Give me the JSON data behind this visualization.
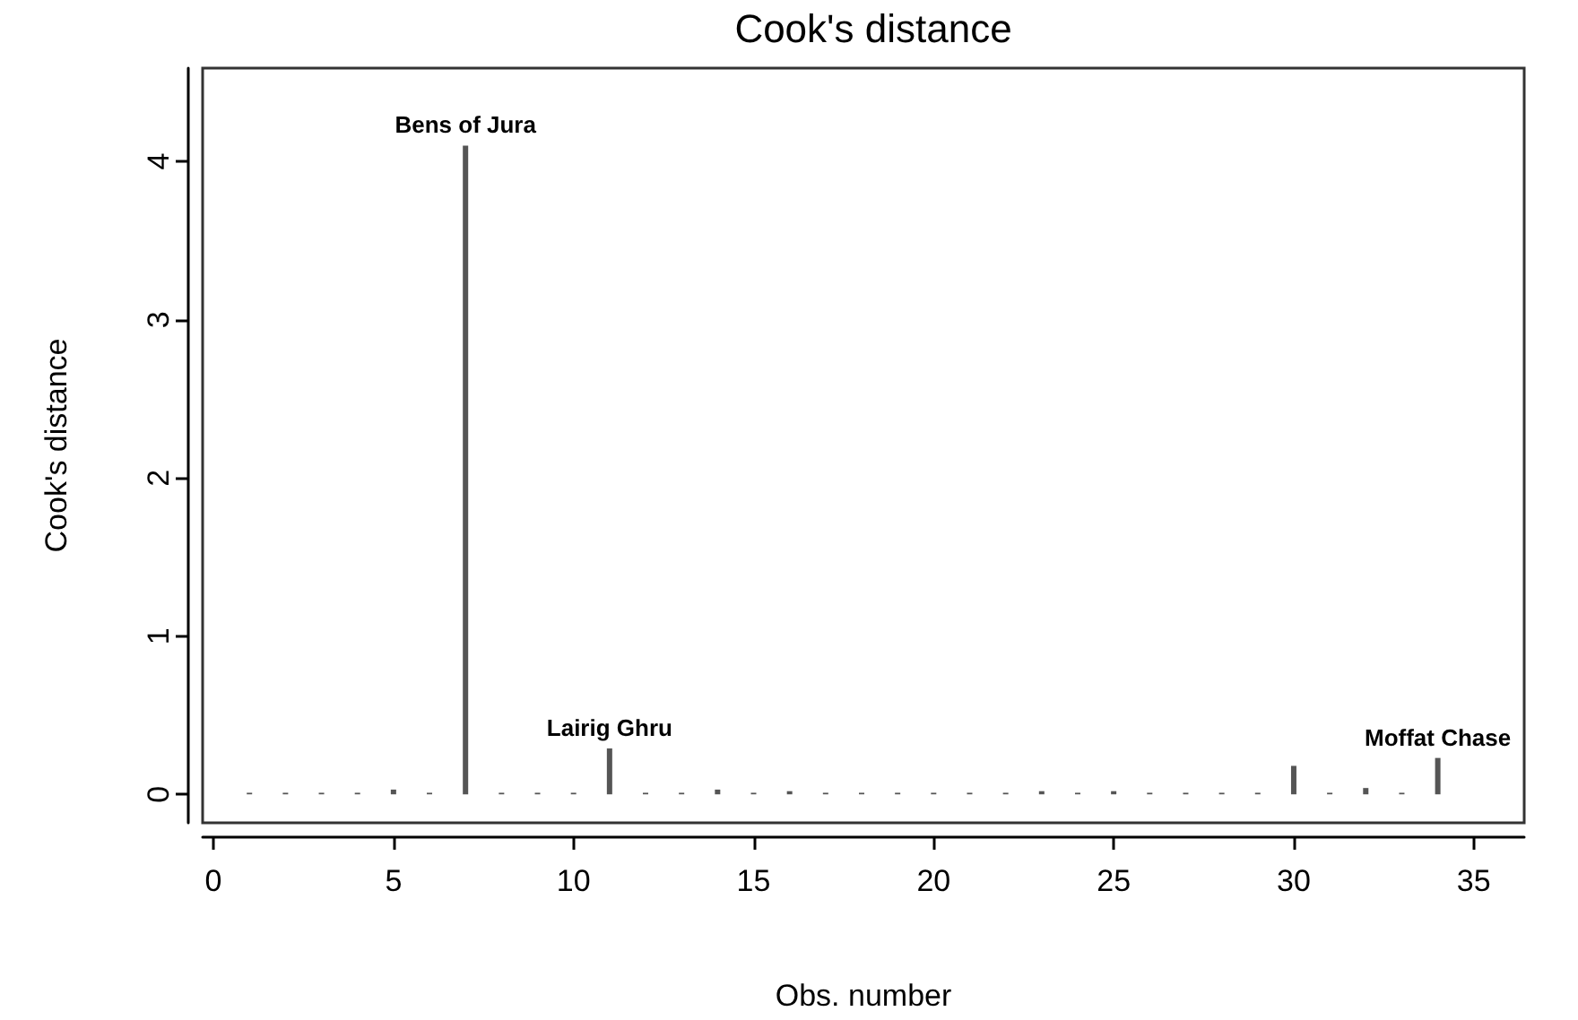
{
  "chart_data": {
    "type": "bar",
    "title": "Cook's distance",
    "xlabel": "Obs. number",
    "ylabel": "Cook's distance",
    "x": [
      1,
      2,
      3,
      4,
      5,
      6,
      7,
      8,
      9,
      10,
      11,
      12,
      13,
      14,
      15,
      16,
      17,
      18,
      19,
      20,
      21,
      22,
      23,
      24,
      25,
      26,
      27,
      28,
      29,
      30,
      31,
      32,
      33,
      34
    ],
    "values": [
      0.01,
      0.01,
      0.01,
      0.01,
      0.03,
      0.01,
      4.1,
      0.01,
      0.01,
      0.01,
      0.29,
      0.01,
      0.01,
      0.03,
      0.01,
      0.02,
      0.01,
      0.01,
      0.01,
      0.01,
      0.01,
      0.01,
      0.02,
      0.01,
      0.02,
      0.01,
      0.01,
      0.01,
      0.01,
      0.18,
      0.01,
      0.04,
      0.01,
      0.23
    ],
    "color": "#555555",
    "xlim": [
      -0.3,
      36.4
    ],
    "xticks": [
      0,
      5,
      10,
      15,
      20,
      25,
      30,
      35
    ],
    "ylim": [
      -0.18,
      4.59
    ],
    "yticks": [
      0,
      1,
      2,
      3,
      4
    ],
    "grid": false,
    "annotations": [
      {
        "text": "Bens of Jura",
        "x": 7,
        "y": 4.1
      },
      {
        "text": "Lairig Ghru",
        "x": 11,
        "y": 0.29
      },
      {
        "text": "Moffat Chase",
        "x": 34,
        "y": 0.23
      }
    ]
  }
}
